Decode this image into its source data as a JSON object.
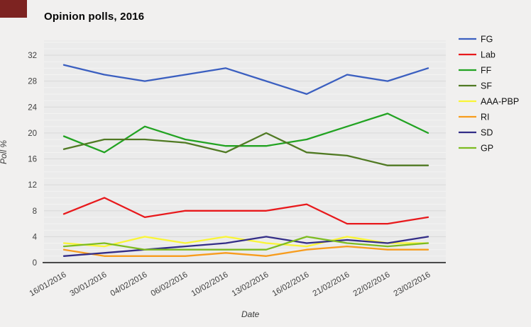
{
  "window": {
    "corner_accent_color": "#7d2321",
    "background_color": "#f1f0ef",
    "plot_background_color": "#ebebeb"
  },
  "chart_data": {
    "type": "line",
    "title": "Opinion polls, 2016",
    "xlabel": "Date",
    "ylabel": "Poll %",
    "x_labels": [
      "16/01/2016",
      "30/01/2016",
      "04/02/2016",
      "06/02/2016",
      "10/02/2016",
      "13/02/2016",
      "16/02/2016",
      "21/02/2016",
      "22/02/2016",
      "23/02/2016"
    ],
    "y_ticks": [
      0,
      4,
      8,
      12,
      16,
      20,
      24,
      28,
      32
    ],
    "ylim": [
      0,
      34.3
    ],
    "grid": true,
    "legend_position": "right",
    "series": [
      {
        "name": "FG",
        "color": "#3b5fc0",
        "values": [
          30.5,
          29,
          28,
          29,
          30,
          28,
          26,
          29,
          28,
          30
        ]
      },
      {
        "name": "Lab",
        "color": "#e8191c",
        "values": [
          7.5,
          10,
          7,
          8,
          8,
          8,
          9,
          6,
          6,
          7
        ]
      },
      {
        "name": "FF",
        "color": "#22a322",
        "values": [
          19.5,
          17,
          21,
          19,
          18,
          18,
          19,
          21,
          23,
          20
        ]
      },
      {
        "name": "SF",
        "color": "#507a23",
        "values": [
          17.5,
          19,
          19,
          18.5,
          17,
          20,
          17,
          16.5,
          15,
          15
        ]
      },
      {
        "name": "AAA-PBP",
        "color": "#f9f536",
        "values": [
          3,
          2.5,
          4,
          3,
          4,
          3,
          2.5,
          4,
          3,
          3
        ]
      },
      {
        "name": "RI",
        "color": "#f79c1d",
        "values": [
          2,
          1,
          1,
          1,
          1.5,
          1,
          2,
          2.5,
          2,
          2
        ]
      },
      {
        "name": "SD",
        "color": "#332d87",
        "values": [
          1,
          1.5,
          2,
          2.5,
          3,
          4,
          3,
          3.5,
          3,
          4
        ]
      },
      {
        "name": "GP",
        "color": "#7dbb21",
        "values": [
          2.5,
          3,
          2,
          2,
          2,
          2,
          4,
          3,
          2.5,
          3
        ]
      }
    ]
  }
}
